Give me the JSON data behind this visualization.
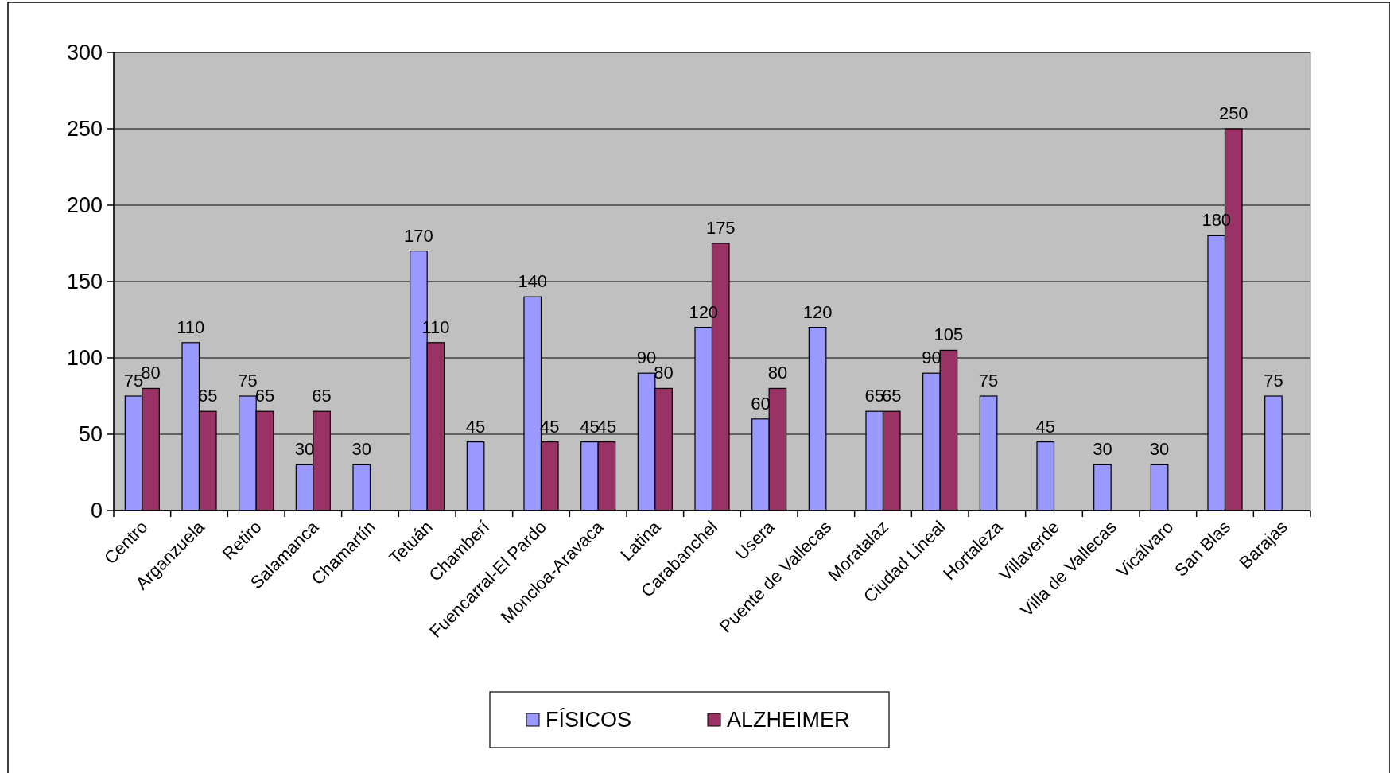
{
  "chart_data": {
    "type": "bar",
    "categories": [
      "Centro",
      "Arganzuela",
      "Retiro",
      "Salamanca",
      "Chamartín",
      "Tetuán",
      "Chamberí",
      "Fuencarral-El Pardo",
      "Moncloa-Aravaca",
      "Latina",
      "Carabanchel",
      "Usera",
      "Puente de Vallecas",
      "Moratalaz",
      "Ciudad Lineal",
      "Hortaleza",
      "Villaverde",
      "Villa de Vallecas",
      "Vicálvaro",
      "San Blas",
      "Barajas"
    ],
    "series": [
      {
        "name": "FÍSICOS",
        "color": "#9999ff",
        "values": [
          75,
          110,
          75,
          30,
          30,
          170,
          45,
          140,
          45,
          90,
          120,
          60,
          120,
          65,
          90,
          75,
          45,
          30,
          30,
          180,
          75
        ]
      },
      {
        "name": "ALZHEIMER",
        "color": "#993366",
        "values": [
          80,
          65,
          65,
          65,
          null,
          110,
          null,
          45,
          45,
          80,
          175,
          80,
          null,
          65,
          105,
          null,
          null,
          null,
          null,
          250,
          null
        ]
      }
    ],
    "ylim": [
      0,
      300
    ],
    "yticks": [
      0,
      50,
      100,
      150,
      200,
      250,
      300
    ],
    "grid": "y",
    "legend": "bottom",
    "data_labels": true
  }
}
